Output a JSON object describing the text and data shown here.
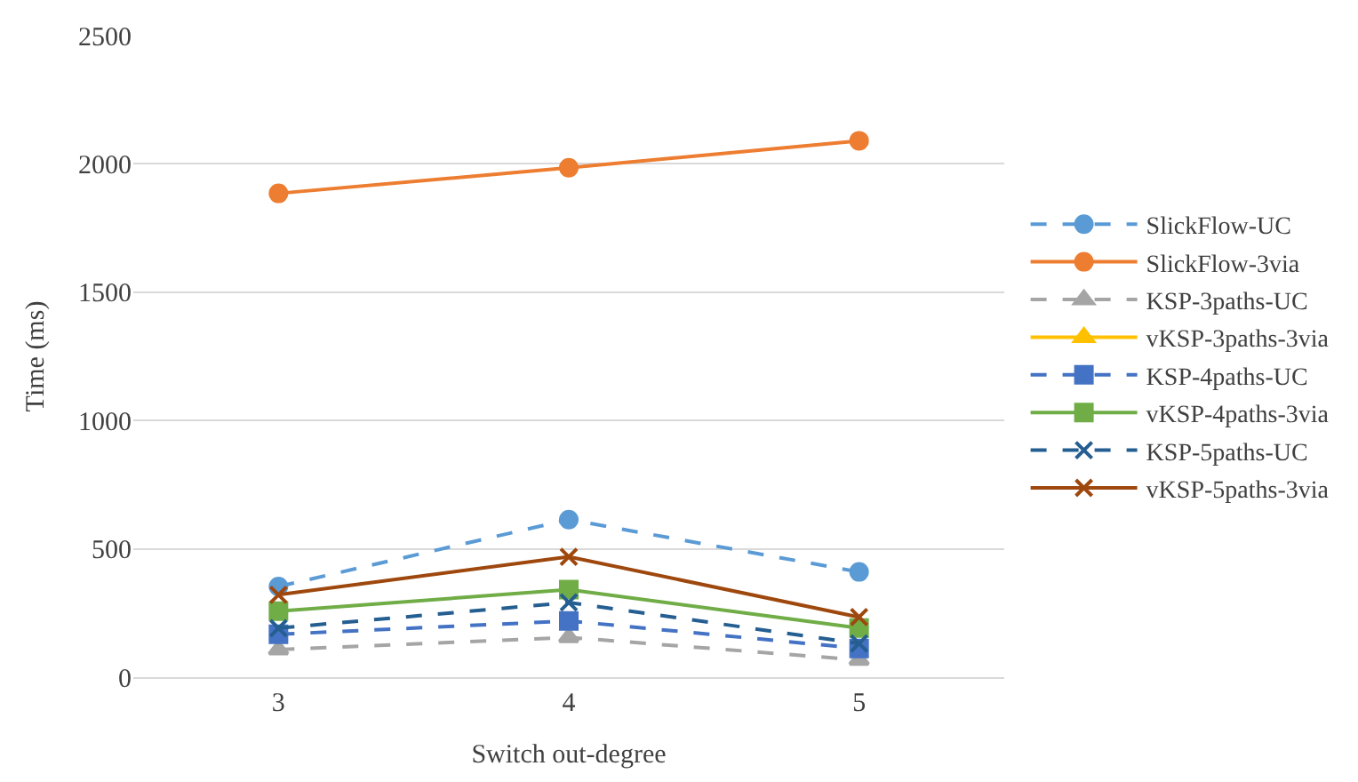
{
  "chart_data": {
    "type": "line",
    "xlabel": "Switch out-degree",
    "ylabel": "Time (ms)",
    "categories": [
      "3",
      "4",
      "5"
    ],
    "ylim": [
      0,
      2500
    ],
    "yticks": [
      0,
      500,
      1000,
      1500,
      2000,
      2500
    ],
    "grid": "y",
    "legend": "right",
    "series": [
      {
        "name": "SlickFlow-UC",
        "color": "#5b9bd5",
        "marker": "circle",
        "line_style": "dashed",
        "values": [
          353,
          614,
          410
        ]
      },
      {
        "name": "SlickFlow-3via",
        "color": "#ed7d31",
        "marker": "circle",
        "line_style": "solid",
        "values": [
          1885,
          1985,
          2090
        ]
      },
      {
        "name": "KSP-3paths-UC",
        "color": "#a5a5a5",
        "marker": "triangle",
        "line_style": "dashed",
        "values": [
          107,
          155,
          67
        ]
      },
      {
        "name": "vKSP-3paths-3via",
        "color": "#ffc000",
        "marker": "triangle",
        "line_style": "solid",
        "values": [
          null,
          null,
          null
        ]
      },
      {
        "name": "KSP-4paths-UC",
        "color": "#4472c4",
        "marker": "square",
        "line_style": "dashed",
        "values": [
          167,
          219,
          112
        ]
      },
      {
        "name": "vKSP-4paths-3via",
        "color": "#70ad47",
        "marker": "square",
        "line_style": "solid",
        "values": [
          257,
          341,
          191
        ]
      },
      {
        "name": "KSP-5paths-UC",
        "color": "#255e91",
        "marker": "cross",
        "line_style": "dashed",
        "values": [
          191,
          291,
          131
        ]
      },
      {
        "name": "vKSP-5paths-3via",
        "color": "#9e480e",
        "marker": "cross",
        "line_style": "solid",
        "values": [
          321,
          469,
          234
        ]
      }
    ]
  }
}
